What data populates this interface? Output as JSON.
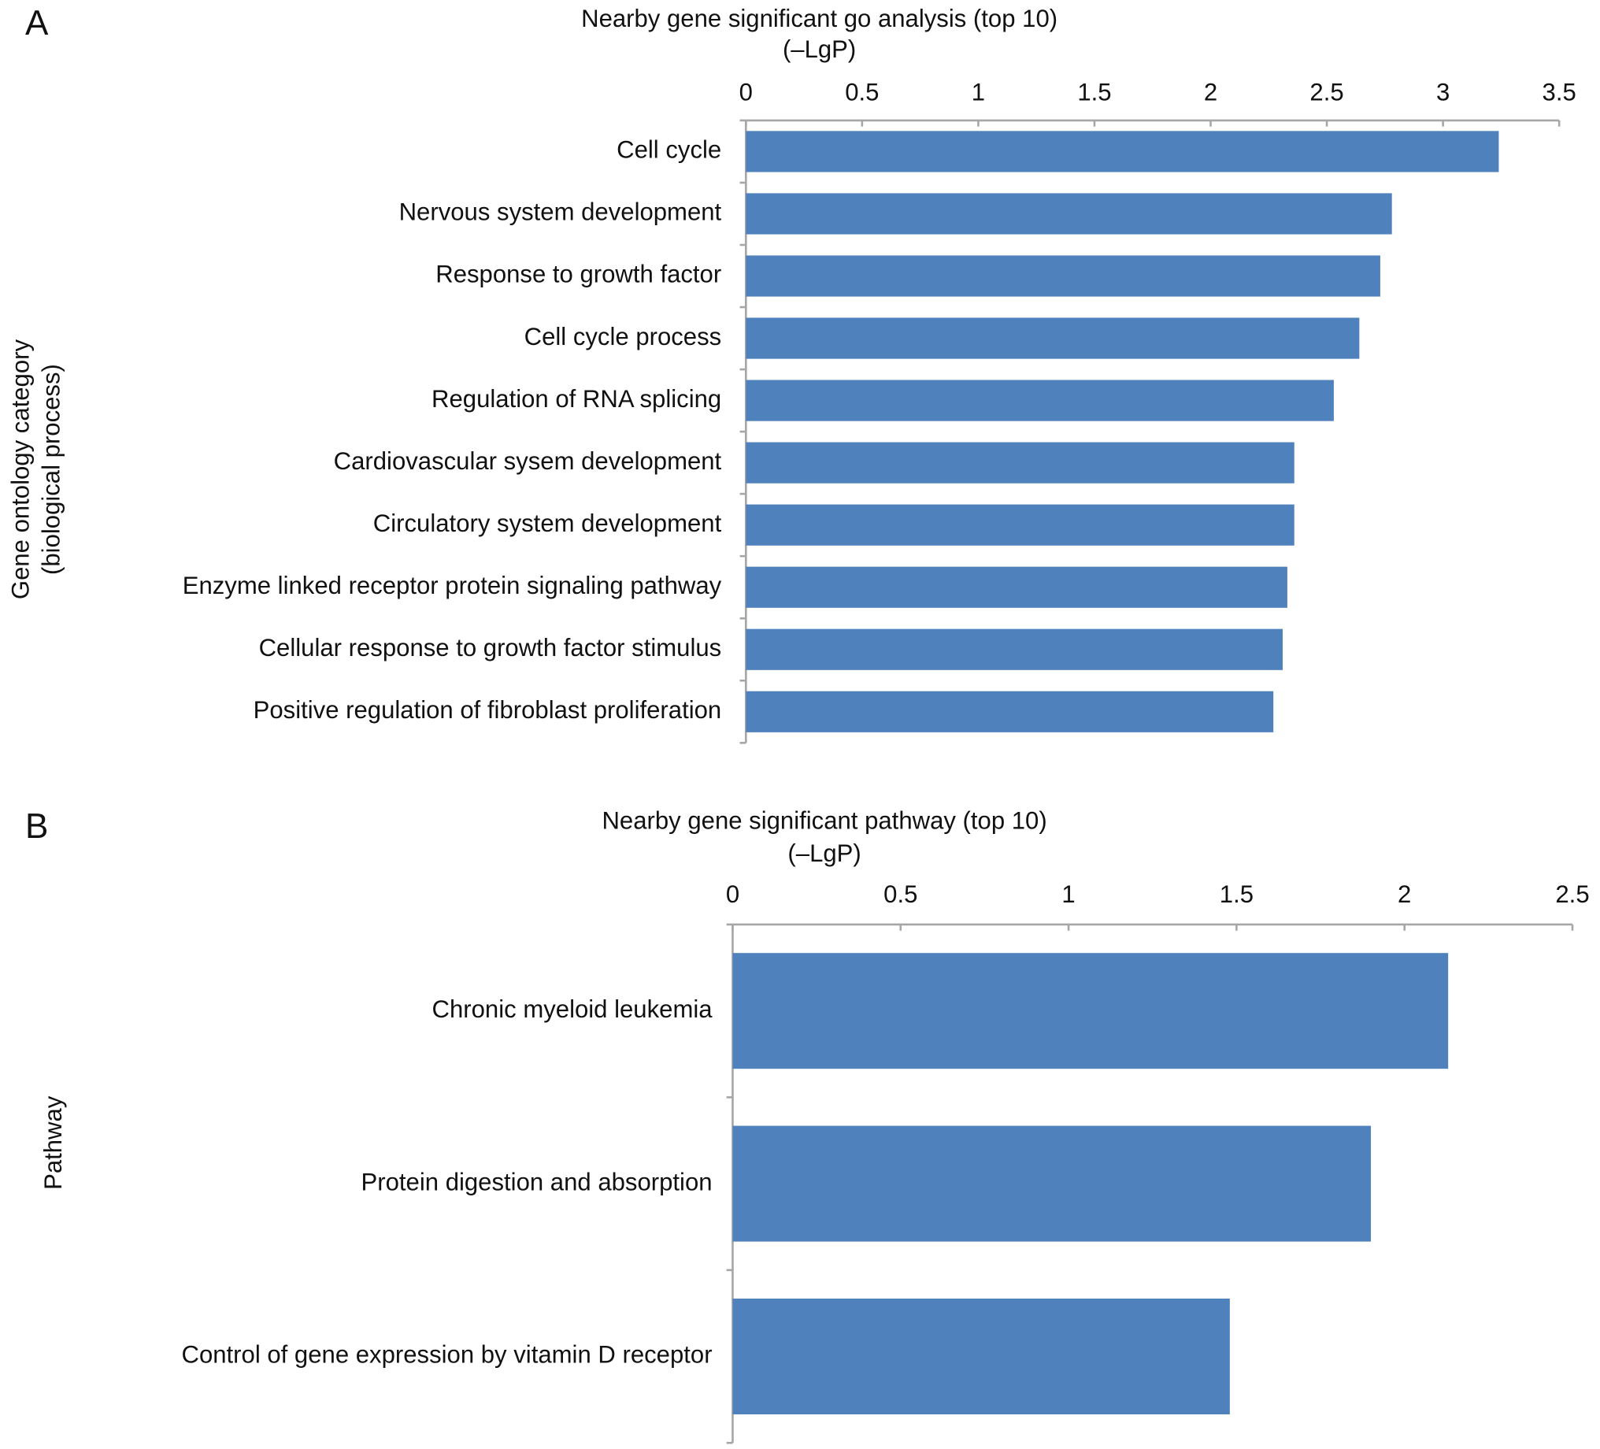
{
  "chart_data": [
    {
      "type": "bar",
      "orientation": "horizontal",
      "panel_label": "A",
      "title": "Nearby gene significant go analysis (top 10)",
      "xlabel": "(–LgP)",
      "ylabel": [
        "Gene ontology category",
        "(biological process)"
      ],
      "categories": [
        "Cell cycle",
        "Nervous system development",
        "Response to growth factor",
        "Cell cycle process",
        "Regulation of RNA splicing",
        "Cardiovascular sysem development",
        "Circulatory system development",
        "Enzyme linked receptor protein signaling pathway",
        "Cellular response to growth factor stimulus",
        "Positive regulation of fibroblast proliferation"
      ],
      "values": [
        3.24,
        2.78,
        2.73,
        2.64,
        2.53,
        2.36,
        2.36,
        2.33,
        2.31,
        2.27
      ],
      "color": "#4f81bd",
      "xlim": [
        0,
        3.5
      ],
      "xticks": [
        0,
        0.5,
        1,
        1.5,
        2,
        2.5,
        3,
        3.5
      ],
      "grid": false
    },
    {
      "type": "bar",
      "orientation": "horizontal",
      "panel_label": "B",
      "title": "Nearby gene significant pathway (top 10)",
      "xlabel": "(–LgP)",
      "ylabel": [
        "Pathway"
      ],
      "categories": [
        "Chronic myeloid leukemia",
        "Protein digestion and absorption",
        "Control of gene expression by vitamin D receptor"
      ],
      "values": [
        2.13,
        1.9,
        1.48
      ],
      "color": "#4f81bd",
      "xlim": [
        0,
        2.5
      ],
      "xticks": [
        0,
        0.5,
        1,
        1.5,
        2,
        2.5
      ],
      "grid": false
    }
  ]
}
